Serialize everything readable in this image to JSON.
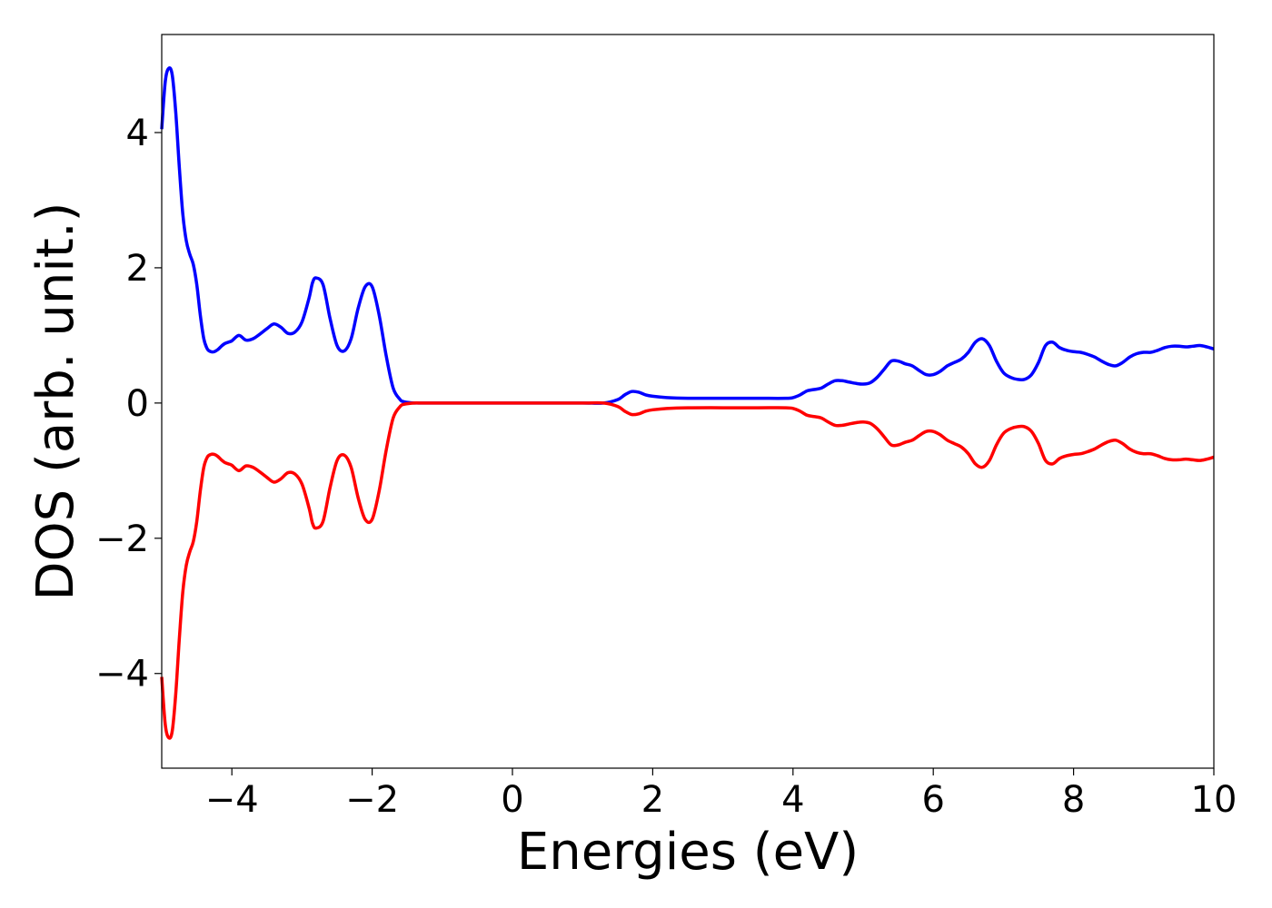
{
  "chart_data": {
    "type": "line",
    "title": "",
    "xlabel": "Energies (eV)",
    "ylabel": "DOS (arb. unit.)",
    "xlim": [
      -5,
      10
    ],
    "ylim": [
      -5.4,
      5.45
    ],
    "xticks": [
      -4,
      -2,
      0,
      2,
      4,
      6,
      8,
      10
    ],
    "yticks": [
      -4,
      -2,
      0,
      2,
      4
    ],
    "xtick_labels": [
      "−4",
      "−2",
      "0",
      "2",
      "4",
      "6",
      "8",
      "10"
    ],
    "ytick_labels": [
      "−4",
      "−2",
      "0",
      "2",
      "4"
    ],
    "grid": false,
    "legend": "none",
    "series": [
      {
        "color": "#0000ff",
        "x": [
          -5.0,
          -4.95,
          -4.9,
          -4.85,
          -4.8,
          -4.75,
          -4.7,
          -4.65,
          -4.6,
          -4.55,
          -4.5,
          -4.45,
          -4.4,
          -4.35,
          -4.3,
          -4.25,
          -4.2,
          -4.15,
          -4.1,
          -4.05,
          -4.0,
          -3.9,
          -3.8,
          -3.7,
          -3.6,
          -3.5,
          -3.4,
          -3.3,
          -3.2,
          -3.1,
          -3.0,
          -2.9,
          -2.85,
          -2.8,
          -2.7,
          -2.6,
          -2.5,
          -2.4,
          -2.3,
          -2.2,
          -2.1,
          -2.0,
          -1.9,
          -1.8,
          -1.7,
          -1.6,
          -1.55,
          -1.5,
          -1.4,
          -1.3,
          -1.2,
          -1.1,
          -1.0,
          -0.9,
          -0.8,
          -0.7,
          -0.6,
          -0.5,
          -0.4,
          -0.2,
          0.0,
          0.5,
          1.0,
          1.3,
          1.5,
          1.6,
          1.7,
          1.8,
          1.9,
          2.0,
          2.2,
          2.5,
          3.0,
          3.5,
          3.9,
          4.0,
          4.1,
          4.2,
          4.3,
          4.4,
          4.5,
          4.6,
          4.7,
          4.8,
          4.9,
          5.0,
          5.1,
          5.2,
          5.3,
          5.4,
          5.5,
          5.6,
          5.7,
          5.8,
          5.9,
          6.0,
          6.1,
          6.2,
          6.3,
          6.4,
          6.5,
          6.6,
          6.7,
          6.8,
          6.9,
          7.0,
          7.1,
          7.2,
          7.3,
          7.4,
          7.5,
          7.6,
          7.7,
          7.8,
          7.9,
          8.0,
          8.1,
          8.2,
          8.3,
          8.4,
          8.5,
          8.6,
          8.7,
          8.8,
          8.9,
          9.0,
          9.1,
          9.2,
          9.3,
          9.4,
          9.5,
          9.6,
          9.7,
          9.8,
          9.9,
          10.0
        ],
        "y": [
          4.05,
          4.75,
          4.95,
          4.85,
          4.3,
          3.5,
          2.8,
          2.4,
          2.2,
          2.05,
          1.75,
          1.3,
          0.95,
          0.8,
          0.76,
          0.76,
          0.79,
          0.84,
          0.88,
          0.9,
          0.92,
          1.0,
          0.93,
          0.95,
          1.02,
          1.1,
          1.17,
          1.12,
          1.03,
          1.05,
          1.2,
          1.55,
          1.78,
          1.85,
          1.75,
          1.25,
          0.85,
          0.77,
          0.95,
          1.4,
          1.72,
          1.72,
          1.3,
          0.7,
          0.22,
          0.05,
          0.02,
          0.01,
          0.0,
          0.0,
          0.0,
          0.0,
          0.0,
          0.0,
          0.0,
          0.0,
          0.0,
          0.0,
          0.0,
          0.0,
          0.0,
          0.0,
          0.0,
          0.0,
          0.05,
          0.12,
          0.17,
          0.16,
          0.12,
          0.1,
          0.08,
          0.07,
          0.07,
          0.07,
          0.07,
          0.08,
          0.12,
          0.18,
          0.2,
          0.22,
          0.28,
          0.33,
          0.33,
          0.31,
          0.29,
          0.28,
          0.3,
          0.38,
          0.5,
          0.62,
          0.62,
          0.58,
          0.55,
          0.48,
          0.42,
          0.42,
          0.47,
          0.55,
          0.6,
          0.65,
          0.75,
          0.9,
          0.95,
          0.85,
          0.62,
          0.45,
          0.38,
          0.35,
          0.35,
          0.42,
          0.6,
          0.85,
          0.9,
          0.82,
          0.78,
          0.76,
          0.75,
          0.72,
          0.68,
          0.62,
          0.57,
          0.55,
          0.6,
          0.68,
          0.73,
          0.75,
          0.75,
          0.78,
          0.82,
          0.84,
          0.84,
          0.83,
          0.84,
          0.85,
          0.83,
          0.8
        ],
        "x_note": ""
      },
      {
        "color": "#ff0000",
        "mirror_of": 0
      }
    ]
  }
}
